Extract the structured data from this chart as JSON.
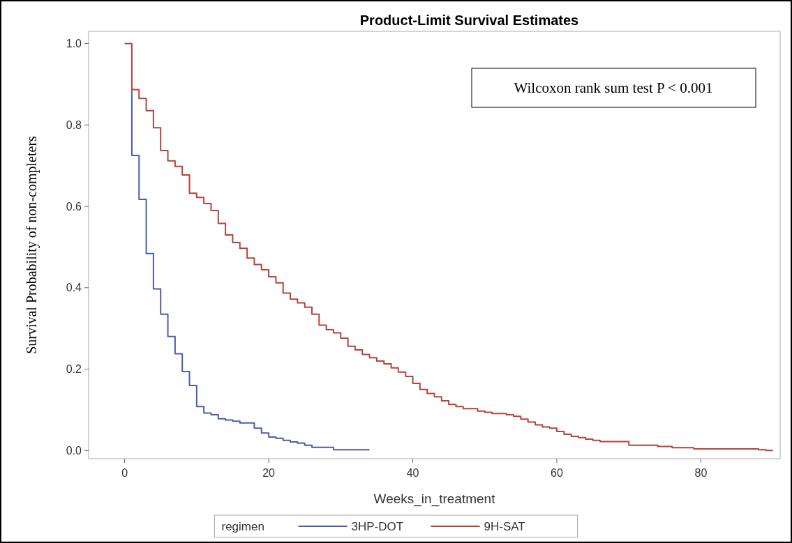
{
  "chart_data": {
    "type": "step",
    "title": "Product-Limit Survival Estimates",
    "xlabel": "Weeks_in_treatment",
    "ylabel": "Survival Probability of non-completers",
    "legend_title": "regimen",
    "legend": "bottom",
    "grid": false,
    "xlim": [
      -5,
      91
    ],
    "xticks": [
      0,
      20,
      40,
      60,
      80
    ],
    "ylim": [
      -0.02,
      1.03
    ],
    "yticks": [
      {
        "value": 0,
        "label": "0.0"
      },
      {
        "value": 0.2,
        "label": "0.2"
      },
      {
        "value": 0.4,
        "label": "0.4"
      },
      {
        "value": 0.6,
        "label": "0.6"
      },
      {
        "value": 0.8,
        "label": "0.8"
      },
      {
        "value": 1,
        "label": "1.0"
      }
    ],
    "annotations": [
      "Wilcoxon rank sum test P < 0.001"
    ],
    "series": [
      {
        "name": "3HP-DOT",
        "color": "#4a5ea8",
        "x": [
          1,
          1,
          2,
          3,
          4,
          5,
          6,
          7,
          8,
          9,
          10,
          11,
          12,
          13,
          14,
          15,
          16,
          18,
          19,
          20,
          21,
          22,
          23,
          24,
          25,
          26,
          29,
          34
        ],
        "values": [
          0.887,
          0.725,
          0.617,
          0.484,
          0.397,
          0.335,
          0.28,
          0.238,
          0.194,
          0.16,
          0.108,
          0.092,
          0.088,
          0.078,
          0.075,
          0.072,
          0.068,
          0.055,
          0.043,
          0.033,
          0.03,
          0.025,
          0.021,
          0.018,
          0.013,
          0.008,
          0.002,
          0.002
        ]
      },
      {
        "name": "9H-SAT",
        "color": "#b8423a",
        "x": [
          0,
          1,
          2,
          3,
          4,
          5,
          6,
          7,
          8,
          9,
          10,
          11,
          12,
          13,
          14,
          15,
          16,
          17,
          18,
          19,
          20,
          21,
          22,
          23,
          24,
          25,
          26,
          27,
          28,
          29,
          30,
          31,
          32,
          33,
          34,
          35,
          36,
          37,
          38,
          39,
          40,
          41,
          42,
          43,
          44,
          45,
          46,
          47,
          49,
          50,
          51,
          53,
          54,
          55,
          56,
          57,
          58,
          59,
          60,
          61,
          62,
          63,
          64,
          65,
          66,
          70,
          74,
          76,
          79,
          88,
          89,
          90
        ],
        "values": [
          1,
          0.887,
          0.865,
          0.835,
          0.793,
          0.737,
          0.712,
          0.698,
          0.677,
          0.632,
          0.622,
          0.607,
          0.59,
          0.558,
          0.53,
          0.511,
          0.497,
          0.473,
          0.457,
          0.444,
          0.427,
          0.412,
          0.387,
          0.372,
          0.363,
          0.352,
          0.335,
          0.308,
          0.297,
          0.289,
          0.276,
          0.256,
          0.247,
          0.236,
          0.228,
          0.22,
          0.213,
          0.203,
          0.193,
          0.182,
          0.165,
          0.15,
          0.14,
          0.132,
          0.122,
          0.113,
          0.108,
          0.103,
          0.097,
          0.094,
          0.091,
          0.088,
          0.084,
          0.077,
          0.07,
          0.063,
          0.058,
          0.055,
          0.047,
          0.04,
          0.035,
          0.032,
          0.028,
          0.025,
          0.022,
          0.013,
          0.01,
          0.007,
          0.004,
          0.002,
          0,
          0
        ]
      }
    ]
  }
}
